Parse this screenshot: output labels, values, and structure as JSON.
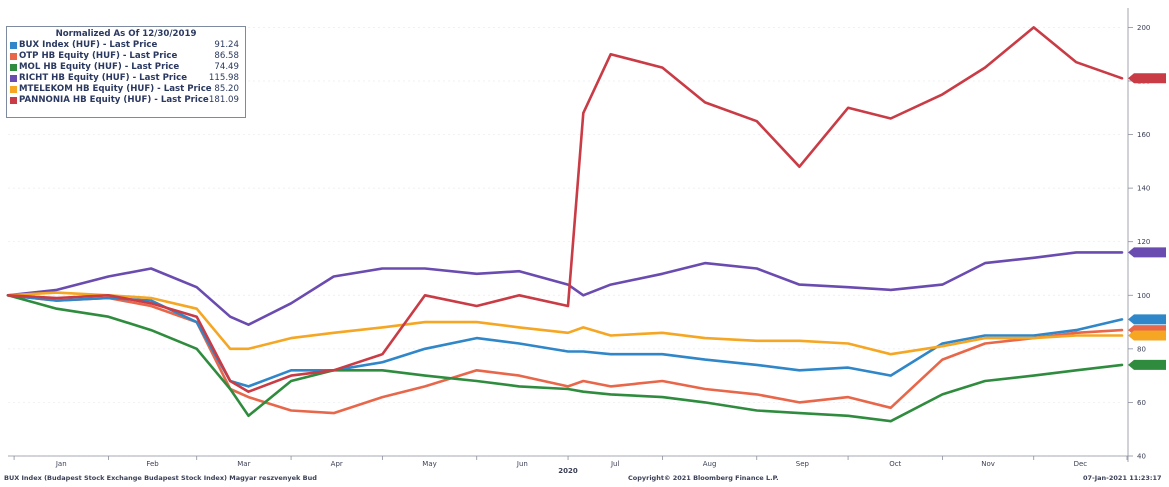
{
  "chart_data": {
    "type": "line",
    "legend_title": "Normalized As Of 12/30/2019",
    "legend_position": "top-left",
    "year_label": "2020",
    "x_ticks": [
      "Jan",
      "Feb",
      "Mar",
      "Apr",
      "May",
      "Jun",
      "Jul",
      "Aug",
      "Sep",
      "Oct",
      "Nov",
      "Dec"
    ],
    "y_ticks": [
      40,
      60,
      80,
      100,
      120,
      140,
      160,
      180,
      200
    ],
    "ylim": [
      40,
      205
    ],
    "x_dates": [
      "2019-12-30",
      "2020-01-15",
      "2020-02-01",
      "2020-02-15",
      "2020-03-01",
      "2020-03-12",
      "2020-03-18",
      "2020-04-01",
      "2020-04-15",
      "2020-05-01",
      "2020-05-15",
      "2020-06-01",
      "2020-06-15",
      "2020-07-01",
      "2020-07-06",
      "2020-07-15",
      "2020-08-01",
      "2020-08-15",
      "2020-09-01",
      "2020-09-15",
      "2020-10-01",
      "2020-10-15",
      "2020-11-01",
      "2020-11-15",
      "2020-12-01",
      "2020-12-15",
      "2020-12-30"
    ],
    "series": [
      {
        "name": "BUX Index (HUF) - Last Price",
        "last": "91.24",
        "color": "#2f86c8",
        "values": [
          100,
          98,
          99,
          98,
          90,
          68,
          66,
          72,
          72,
          75,
          80,
          84,
          82,
          79,
          79,
          78,
          78,
          76,
          74,
          72,
          73,
          70,
          82,
          85,
          85,
          87,
          91
        ]
      },
      {
        "name": "OTP HB Equity (HUF) - Last Price",
        "last": "86.58",
        "color": "#e8674a",
        "values": [
          100,
          98,
          99,
          96,
          90,
          65,
          62,
          57,
          56,
          62,
          66,
          72,
          70,
          66,
          68,
          66,
          68,
          65,
          63,
          60,
          62,
          58,
          76,
          82,
          84,
          86,
          87
        ]
      },
      {
        "name": "MOL HB Equity (HUF) - Last Price",
        "last": "74.49",
        "color": "#2f8c3e",
        "values": [
          100,
          95,
          92,
          87,
          80,
          65,
          55,
          68,
          72,
          72,
          70,
          68,
          66,
          65,
          64,
          63,
          62,
          60,
          57,
          56,
          55,
          53,
          63,
          68,
          70,
          72,
          74
        ]
      },
      {
        "name": "RICHT HB Equity (HUF) - Last Price",
        "last": "115.98",
        "color": "#6a4bb0",
        "values": [
          100,
          102,
          107,
          110,
          103,
          92,
          89,
          97,
          107,
          110,
          110,
          108,
          109,
          104,
          100,
          104,
          108,
          112,
          110,
          104,
          103,
          102,
          104,
          112,
          114,
          116,
          116
        ]
      },
      {
        "name": "MTELEKOM HB Equity (HUF) - Last Price",
        "last": "85.20",
        "color": "#f5a623",
        "values": [
          100,
          101,
          100,
          99,
          95,
          80,
          80,
          84,
          86,
          88,
          90,
          90,
          88,
          86,
          88,
          85,
          86,
          84,
          83,
          83,
          82,
          78,
          81,
          84,
          84,
          85,
          85
        ]
      },
      {
        "name": "PANNONIA HB Equity (HUF) - Last Price",
        "last": "181.09",
        "color": "#c93b45",
        "values": [
          100,
          99,
          100,
          97,
          92,
          68,
          64,
          70,
          72,
          78,
          100,
          96,
          100,
          96,
          168,
          190,
          185,
          172,
          165,
          148,
          170,
          166,
          175,
          185,
          200,
          187,
          181
        ]
      }
    ]
  },
  "footer": {
    "left": "BUX Index (Budapest Stock Exchange Budapest Stock Index) Magyar reszvenyek Bud",
    "center": "Copyright© 2021 Bloomberg Finance L.P.",
    "right": "07-Jan-2021 11:23:17"
  }
}
